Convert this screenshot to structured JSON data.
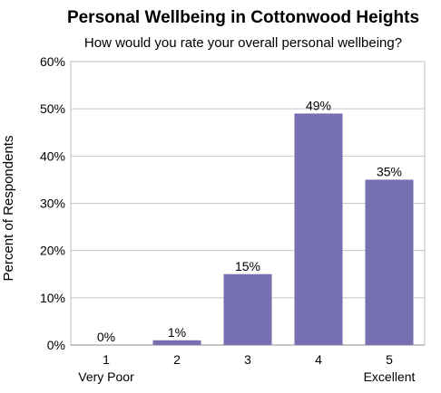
{
  "chart_data": {
    "type": "bar",
    "title": "Personal Wellbeing in Cottonwood Heights",
    "subtitle": "How would you rate your overall personal wellbeing?",
    "ylabel": "Percent of Respondents",
    "xlabel": "",
    "ylim": [
      0,
      60
    ],
    "yticks": [
      "0%",
      "10%",
      "20%",
      "30%",
      "40%",
      "50%",
      "60%"
    ],
    "categories": [
      "1",
      "2",
      "3",
      "4",
      "5"
    ],
    "category_sublabels": [
      "Very Poor",
      "",
      "",
      "",
      "Excellent"
    ],
    "values": [
      0,
      1,
      15,
      49,
      35
    ],
    "data_labels": [
      "0%",
      "1%",
      "15%",
      "49%",
      "35%"
    ],
    "bar_color": "#7670b3",
    "grid": true,
    "legend": "none"
  }
}
